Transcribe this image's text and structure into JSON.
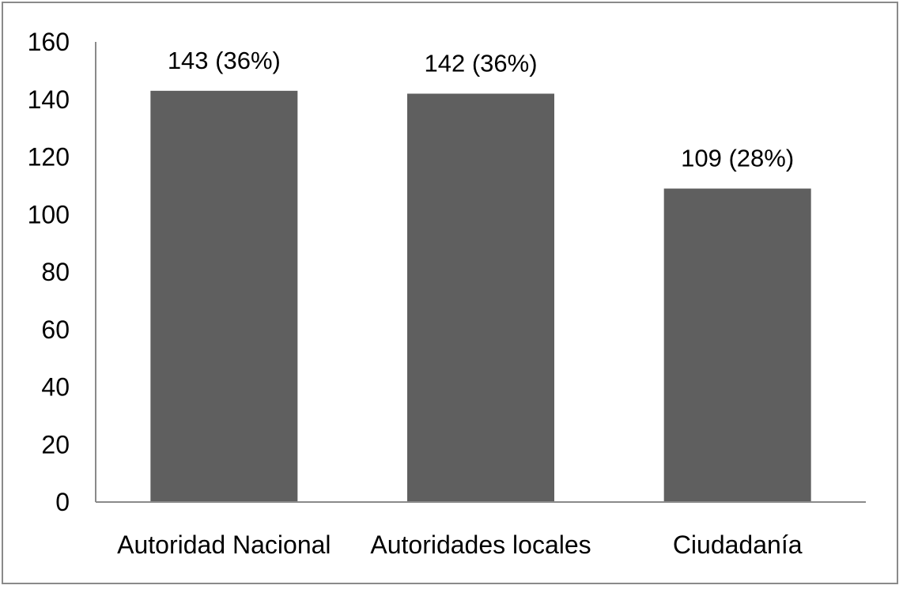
{
  "chart_data": {
    "type": "bar",
    "categories": [
      "Autoridad Nacional",
      "Autoridades locales",
      "Ciudadanía"
    ],
    "values": [
      143,
      142,
      109
    ],
    "data_labels": [
      "143 (36%)",
      "142 (36%)",
      "109 (28%)"
    ],
    "ylim": [
      0,
      160
    ],
    "yticks": [
      0,
      20,
      40,
      60,
      80,
      100,
      120,
      140,
      160
    ],
    "grid": false,
    "legend": "none",
    "bar_color": "#5f5f5f",
    "axis_color": "#8a8a8a"
  }
}
